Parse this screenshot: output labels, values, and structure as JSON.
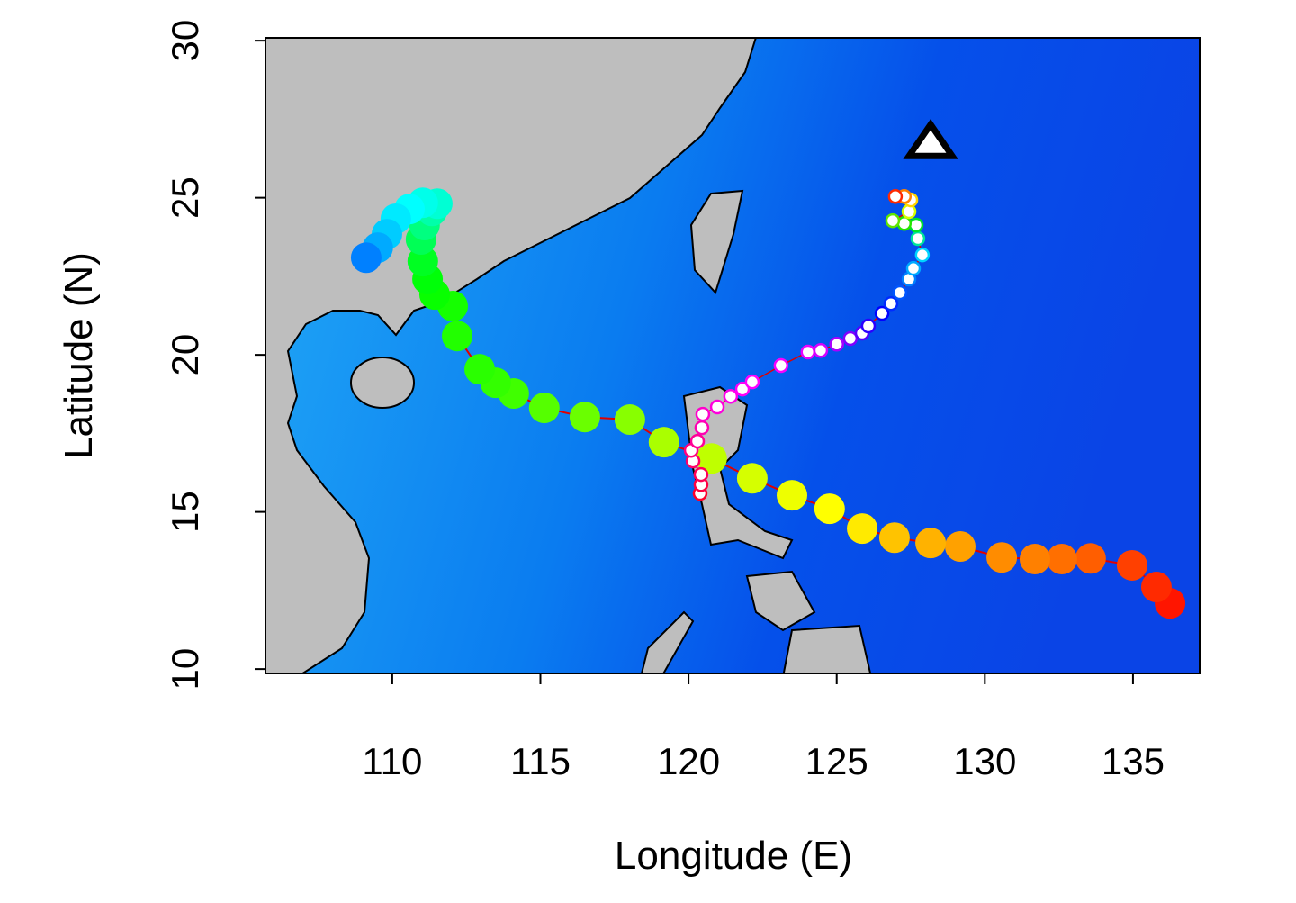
{
  "chart_data": {
    "type": "scatter",
    "xlabel": "Longitude (E)",
    "ylabel": "Latitude (N)",
    "xlim": [
      105.72,
      137.25
    ],
    "ylim": [
      9.86,
      30.09
    ],
    "xticks": [
      110,
      115,
      120,
      125,
      130,
      135
    ],
    "yticks": [
      10,
      15,
      20,
      25,
      30
    ],
    "series": [
      {
        "x": [
          136.25,
          135.79,
          134.97,
          133.57,
          132.6,
          131.69,
          130.57,
          129.17,
          128.17,
          126.95,
          125.86,
          124.76,
          123.49,
          122.15,
          120.78,
          119.17,
          118.02,
          116.5,
          115.13,
          114.1,
          113.49,
          112.95,
          112.19,
          112.04,
          111.43,
          111.19,
          111.03,
          110.97,
          111.09,
          111.34,
          111.52,
          111.03,
          110.58,
          110.12,
          109.82,
          109.51,
          109.12
        ],
        "y": [
          12.09,
          12.61,
          13.3,
          13.52,
          13.5,
          13.5,
          13.55,
          13.9,
          14.01,
          14.18,
          14.47,
          15.1,
          15.53,
          16.07,
          16.7,
          17.22,
          17.94,
          18.02,
          18.31,
          18.77,
          19.11,
          19.54,
          20.6,
          21.55,
          21.92,
          22.41,
          22.98,
          23.67,
          24.13,
          24.58,
          24.81,
          24.84,
          24.64,
          24.33,
          23.84,
          23.41,
          23.09
        ],
        "colors": [
          "hsl(5,100%,50%)",
          "hsl(10,100%,50%)",
          "hsl(15,100%,50%)",
          "hsl(22,100%,50%)",
          "hsl(26,100%,50%)",
          "hsl(30,100%,50%)",
          "hsl(33,100%,50%)",
          "hsl(38,100%,50%)",
          "hsl(42,100%,50%)",
          "hsl(46,100%,50%)",
          "hsl(55,100%,50%)",
          "hsl(60,100%,50%)",
          "hsl(64,100%,50%)",
          "hsl(70,100%,50%)",
          "hsl(75,100%,50%)",
          "hsl(80,100%,50%)",
          "hsl(88,100%,50%)",
          "hsl(95,100%,50%)",
          "hsl(100,100%,50%)",
          "hsl(105,100%,50%)",
          "hsl(108,100%,50%)",
          "hsl(110,100%,50%)",
          "hsl(112,100%,50%)",
          "hsl(115,100%,50%)",
          "hsl(118,100%,50%)",
          "hsl(122,100%,50%)",
          "hsl(128,100%,50%)",
          "hsl(140,100%,50%)",
          "hsl(150,100%,50%)",
          "hsl(160,100%,50%)",
          "hsl(170,100%,50%)",
          "hsl(175,100%,50%)",
          "hsl(180,100%,50%)",
          "hsl(185,100%,50%)",
          "hsl(192,100%,50%)",
          "hsl(200,100%,50%)",
          "hsl(210,100%,50%)"
        ],
        "line_color": "#e00000"
      },
      {
        "x": [
          120.39,
          120.42,
          120.42,
          120.15,
          120.09,
          120.3,
          120.45,
          120.48,
          120.97,
          121.42,
          121.82,
          122.15,
          123.12,
          124.03,
          124.46,
          125.0,
          125.46,
          125.86,
          126.07,
          126.53,
          126.83,
          127.13,
          127.44,
          127.59,
          127.89,
          127.74,
          127.68,
          127.28,
          126.89,
          127.44,
          127.5,
          127.28,
          126.98
        ],
        "y": [
          15.59,
          15.87,
          16.19,
          16.62,
          16.96,
          17.25,
          17.68,
          18.11,
          18.34,
          18.68,
          18.91,
          19.14,
          19.66,
          20.09,
          20.14,
          20.34,
          20.52,
          20.69,
          20.92,
          21.32,
          21.63,
          21.98,
          22.41,
          22.75,
          23.18,
          23.7,
          24.13,
          24.18,
          24.27,
          24.56,
          24.93,
          25.04,
          25.04
        ],
        "colors": [
          "hsl(350,100%,50%)",
          "hsl(345,100%,50%)",
          "hsl(340,100%,50%)",
          "hsl(335,100%,50%)",
          "hsl(330,100%,50%)",
          "hsl(325,100%,50%)",
          "hsl(318,100%,50%)",
          "hsl(312,100%,50%)",
          "hsl(308,100%,50%)",
          "hsl(305,100%,50%)",
          "hsl(302,100%,50%)",
          "hsl(300,100%,50%)",
          "hsl(298,100%,50%)",
          "hsl(295,100%,50%)",
          "hsl(290,100%,50%)",
          "hsl(280,100%,50%)",
          "hsl(270,100%,50%)",
          "hsl(260,100%,50%)",
          "hsl(250,100%,50%)",
          "hsl(240,100%,50%)",
          "hsl(230,100%,50%)",
          "hsl(220,100%,50%)",
          "hsl(210,100%,50%)",
          "hsl(200,100%,50%)",
          "hsl(190,100%,50%)",
          "hsl(160,100%,45%)",
          "hsl(130,100%,45%)",
          "hsl(110,100%,45%)",
          "hsl(95,100%,45%)",
          "hsl(70,100%,50%)",
          "hsl(50,100%,50%)",
          "hsl(30,100%,50%)",
          "hsl(10,100%,50%)"
        ],
        "fill": "#ffffff",
        "line_color": "#e00000"
      }
    ],
    "marker_point": {
      "x": 128.17,
      "y": 26.76
    }
  }
}
